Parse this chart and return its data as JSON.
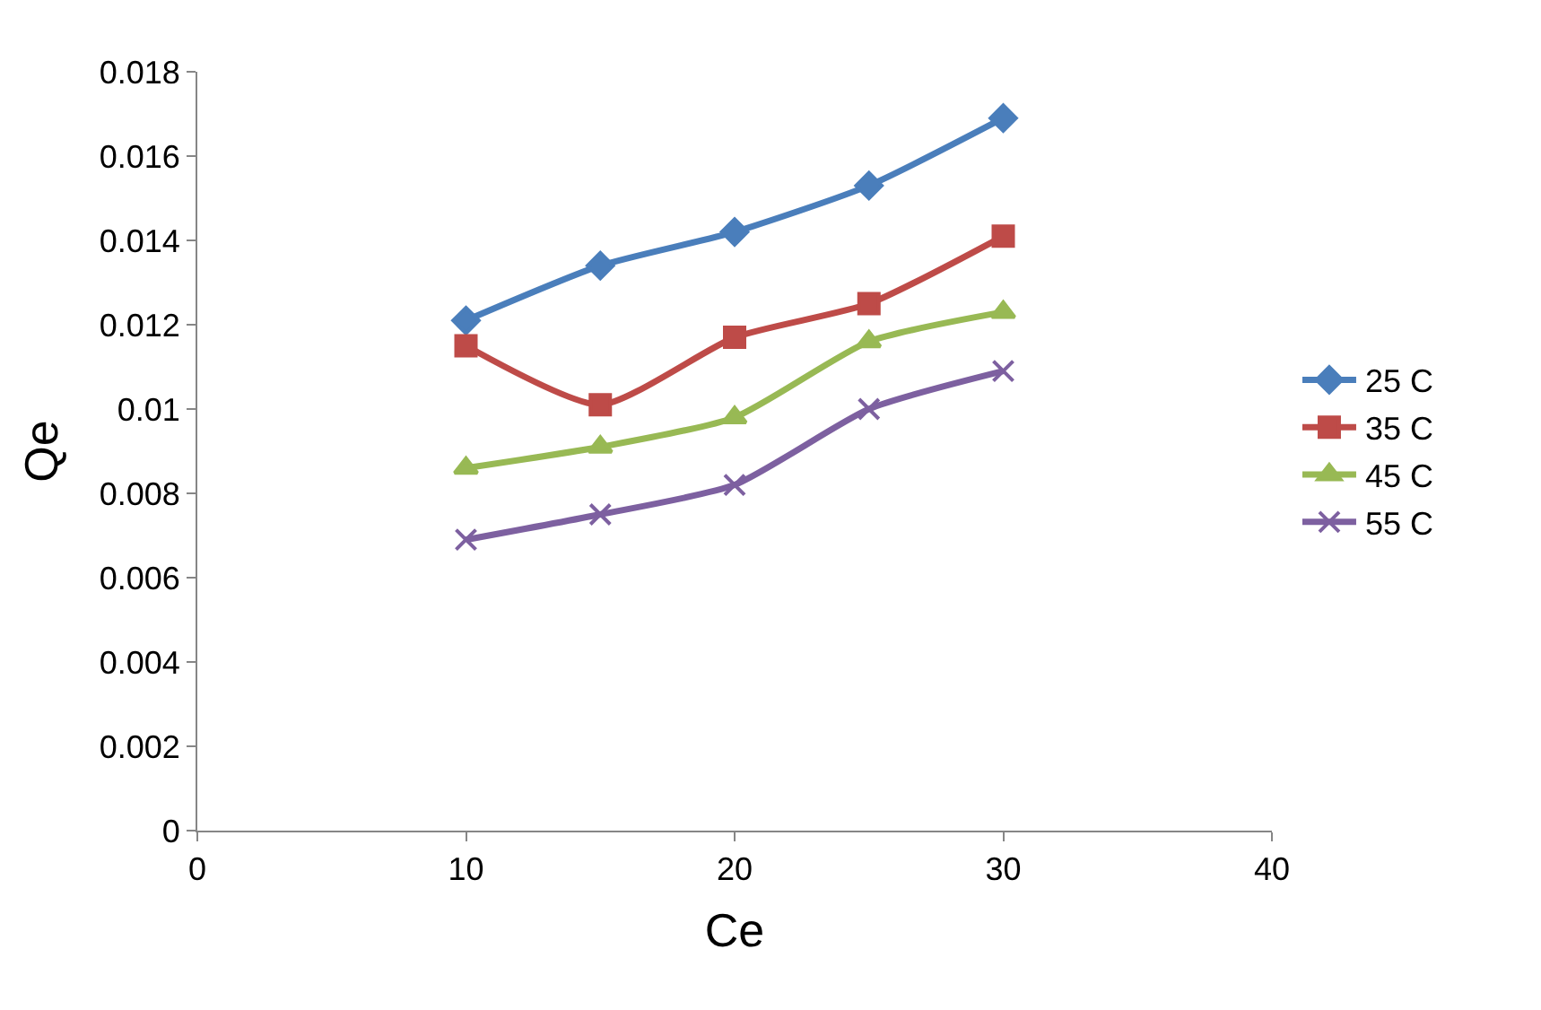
{
  "chart_data": {
    "type": "line",
    "xlabel": "Ce",
    "ylabel": "Qe",
    "x": [
      10,
      15,
      20,
      25,
      30
    ],
    "series": [
      {
        "name": "25 C",
        "color": "#4a7ebb",
        "marker": "diamond",
        "values": [
          0.0121,
          0.0134,
          0.0142,
          0.0153,
          0.0169
        ]
      },
      {
        "name": "35 C",
        "color": "#be4b48",
        "marker": "square",
        "values": [
          0.0115,
          0.0101,
          0.0117,
          0.0125,
          0.0141
        ]
      },
      {
        "name": "45 C",
        "color": "#98b954",
        "marker": "triangle",
        "values": [
          0.0086,
          0.0091,
          0.0098,
          0.0116,
          0.0123
        ]
      },
      {
        "name": "55 C",
        "color": "#7d60a0",
        "marker": "cross",
        "values": [
          0.0069,
          0.0075,
          0.0082,
          0.01,
          0.0109
        ]
      }
    ],
    "xlim": [
      0,
      40
    ],
    "xticks": [
      0,
      10,
      20,
      30,
      40
    ],
    "ylim": [
      0,
      0.018
    ],
    "yticks": [
      0,
      0.002,
      0.004,
      0.006,
      0.008,
      0.01,
      0.012,
      0.014,
      0.016,
      0.018
    ],
    "grid": false,
    "legend": "right",
    "line_style": "solid"
  }
}
